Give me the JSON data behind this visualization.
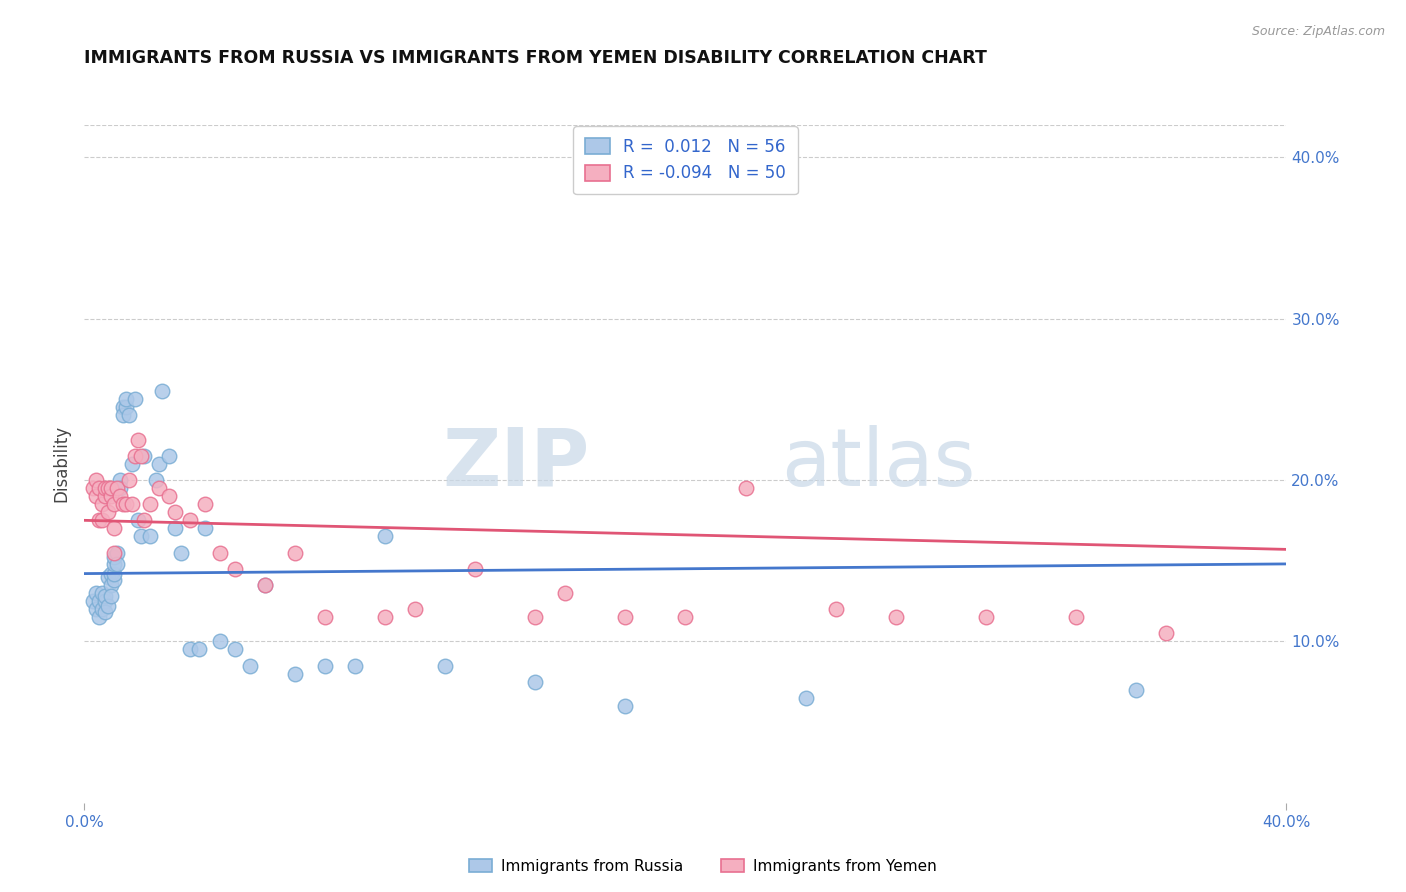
{
  "title": "IMMIGRANTS FROM RUSSIA VS IMMIGRANTS FROM YEMEN DISABILITY CORRELATION CHART",
  "source": "Source: ZipAtlas.com",
  "ylabel": "Disability",
  "y_tick_labels": [
    "10.0%",
    "20.0%",
    "30.0%",
    "40.0%"
  ],
  "y_tick_values": [
    0.1,
    0.2,
    0.3,
    0.4
  ],
  "x_tick_labels": [
    "0.0%",
    "",
    "",
    "",
    "40.0%"
  ],
  "x_tick_values": [
    0.0,
    0.1,
    0.2,
    0.3,
    0.4
  ],
  "xlim": [
    0.0,
    0.4
  ],
  "ylim": [
    0.0,
    0.42
  ],
  "russia_color": "#adc8e8",
  "russia_edge_color": "#7aadd4",
  "yemen_color": "#f5afc0",
  "yemen_edge_color": "#e87090",
  "russia_line_color": "#4477cc",
  "yemen_line_color": "#e05575",
  "legend_label_russia": "Immigrants from Russia",
  "legend_label_yemen": "Immigrants from Yemen",
  "watermark_zip": "ZIP",
  "watermark_atlas": "atlas",
  "russia_x": [
    0.003,
    0.004,
    0.004,
    0.005,
    0.005,
    0.006,
    0.006,
    0.007,
    0.007,
    0.007,
    0.008,
    0.008,
    0.009,
    0.009,
    0.009,
    0.01,
    0.01,
    0.01,
    0.01,
    0.011,
    0.011,
    0.012,
    0.012,
    0.013,
    0.013,
    0.014,
    0.014,
    0.015,
    0.016,
    0.017,
    0.018,
    0.019,
    0.02,
    0.022,
    0.024,
    0.025,
    0.026,
    0.028,
    0.03,
    0.032,
    0.035,
    0.038,
    0.04,
    0.045,
    0.05,
    0.055,
    0.06,
    0.07,
    0.08,
    0.09,
    0.1,
    0.12,
    0.15,
    0.18,
    0.24,
    0.35
  ],
  "russia_y": [
    0.125,
    0.12,
    0.13,
    0.115,
    0.125,
    0.12,
    0.13,
    0.125,
    0.118,
    0.128,
    0.122,
    0.14,
    0.135,
    0.128,
    0.142,
    0.138,
    0.142,
    0.148,
    0.152,
    0.155,
    0.148,
    0.2,
    0.195,
    0.245,
    0.24,
    0.245,
    0.25,
    0.24,
    0.21,
    0.25,
    0.175,
    0.165,
    0.215,
    0.165,
    0.2,
    0.21,
    0.255,
    0.215,
    0.17,
    0.155,
    0.095,
    0.095,
    0.17,
    0.1,
    0.095,
    0.085,
    0.135,
    0.08,
    0.085,
    0.085,
    0.165,
    0.085,
    0.075,
    0.06,
    0.065,
    0.07
  ],
  "yemen_x": [
    0.003,
    0.004,
    0.004,
    0.005,
    0.005,
    0.006,
    0.006,
    0.007,
    0.007,
    0.008,
    0.008,
    0.009,
    0.009,
    0.01,
    0.01,
    0.01,
    0.011,
    0.012,
    0.013,
    0.014,
    0.015,
    0.016,
    0.017,
    0.018,
    0.019,
    0.02,
    0.022,
    0.025,
    0.028,
    0.03,
    0.035,
    0.04,
    0.045,
    0.05,
    0.06,
    0.07,
    0.08,
    0.1,
    0.11,
    0.13,
    0.15,
    0.16,
    0.18,
    0.2,
    0.22,
    0.25,
    0.27,
    0.3,
    0.33,
    0.36
  ],
  "yemen_y": [
    0.195,
    0.2,
    0.19,
    0.175,
    0.195,
    0.185,
    0.175,
    0.19,
    0.195,
    0.18,
    0.195,
    0.19,
    0.195,
    0.155,
    0.17,
    0.185,
    0.195,
    0.19,
    0.185,
    0.185,
    0.2,
    0.185,
    0.215,
    0.225,
    0.215,
    0.175,
    0.185,
    0.195,
    0.19,
    0.18,
    0.175,
    0.185,
    0.155,
    0.145,
    0.135,
    0.155,
    0.115,
    0.115,
    0.12,
    0.145,
    0.115,
    0.13,
    0.115,
    0.115,
    0.195,
    0.12,
    0.115,
    0.115,
    0.115,
    0.105
  ]
}
